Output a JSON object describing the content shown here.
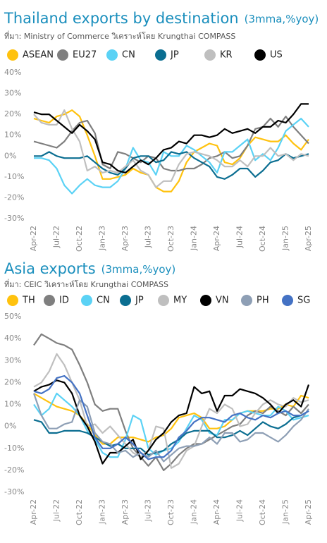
{
  "chart_data": [
    {
      "type": "line",
      "title": "Thailand exports by destination",
      "title_unit": "(3mma,%yoy)",
      "source": "ที่มา: Ministry of Commerce วิเคราะห์โดย Krungthai COMPASS",
      "categories": [
        "Apr-22",
        null,
        null,
        "Jul-22",
        null,
        null,
        "Oct-22",
        null,
        null,
        "Jan-23",
        null,
        null,
        "Apr-23",
        null,
        null,
        "Jul-23",
        null,
        null,
        "Oct-23",
        null,
        null,
        "Jan-24",
        null,
        null,
        "Apr-24",
        null,
        null,
        "Jul-24",
        null,
        null,
        "Oct-24",
        null,
        null,
        "Jan-25",
        null,
        null,
        "Apr-25"
      ],
      "ylim": [
        -30,
        40
      ],
      "yticks": [
        {
          "value": -30,
          "label": "-30%"
        },
        {
          "value": -20,
          "label": "-20%"
        },
        {
          "value": -10,
          "label": "-10%"
        },
        {
          "value": 0,
          "label": "0%"
        },
        {
          "value": 10,
          "label": "10%"
        },
        {
          "value": 20,
          "label": "20%"
        },
        {
          "value": 30,
          "label": "30%"
        },
        {
          "value": 40,
          "label": "40%"
        }
      ],
      "series": [
        {
          "name": "ASEAN",
          "color": "#ffc20e",
          "values": [
            18,
            17,
            16,
            19,
            20,
            22,
            19,
            10,
            0,
            -11,
            -11,
            -10,
            -9,
            -6,
            -8,
            -9,
            -15,
            -17,
            -17,
            -12,
            -3,
            2,
            4,
            6,
            5,
            -3,
            -4,
            -1,
            5,
            9,
            8,
            7,
            7,
            10,
            6,
            3,
            8
          ]
        },
        {
          "name": "EU27",
          "color": "#7f7f7f",
          "values": [
            7,
            6,
            5,
            4,
            7,
            12,
            16,
            17,
            11,
            -4,
            -6,
            2,
            1,
            -1,
            -3,
            0,
            -1,
            -6,
            -7,
            -7,
            -6,
            -6,
            -4,
            -1,
            0,
            2,
            -1,
            0,
            5,
            13,
            14,
            18,
            14,
            19,
            14,
            10,
            6
          ]
        },
        {
          "name": "CN",
          "color": "#5bd2f5",
          "values": [
            -1,
            -1,
            -2,
            -6,
            -14,
            -18,
            -14,
            -11,
            -14,
            -15,
            -15,
            -12,
            -6,
            4,
            -2,
            -3,
            -9,
            2,
            0,
            0,
            5,
            3,
            0,
            -3,
            -8,
            2,
            2,
            5,
            8,
            -2,
            1,
            -2,
            4,
            12,
            15,
            18,
            14
          ]
        },
        {
          "name": "JP",
          "color": "#0b6e91",
          "values": [
            0,
            0,
            2,
            0,
            -1,
            -1,
            -1,
            0,
            -3,
            -6,
            -8,
            -9,
            -6,
            -1,
            0,
            0,
            -3,
            -2,
            2,
            1,
            2,
            -1,
            -3,
            -5,
            -10,
            -11,
            -9,
            -6,
            -6,
            -10,
            -7,
            -3,
            -2,
            1,
            -1,
            0,
            1
          ]
        },
        {
          "name": "KR",
          "color": "#bfbfbf",
          "values": [
            20,
            16,
            15,
            15,
            22,
            13,
            7,
            -7,
            -5,
            -8,
            -7,
            -8,
            -5,
            -2,
            -7,
            -9,
            -15,
            -12,
            -12,
            -4,
            1,
            2,
            1,
            0,
            -2,
            -5,
            -5,
            -2,
            -5,
            0,
            0,
            4,
            0,
            1,
            -2,
            1,
            0
          ]
        },
        {
          "name": "US",
          "color": "#000000",
          "values": [
            21,
            20,
            20,
            17,
            14,
            11,
            15,
            12,
            8,
            -3,
            -4,
            -7,
            -8,
            -5,
            -2,
            -4,
            -1,
            3,
            4,
            7,
            6,
            10,
            10,
            9,
            10,
            13,
            11,
            12,
            13,
            11,
            14,
            14,
            17,
            16,
            20,
            25,
            25
          ]
        }
      ]
    },
    {
      "type": "line",
      "title": "Asia exports",
      "title_unit": "(3mma,%yoy)",
      "source": "ที่มา: CEIC วิเคราะห์โดย Krungthai COMPASS",
      "categories": [
        "Apr-22",
        null,
        null,
        "Jul-22",
        null,
        null,
        "Oct-22",
        null,
        null,
        "Jan-23",
        null,
        null,
        "Apr-23",
        null,
        null,
        "Jul-23",
        null,
        null,
        "Oct-23",
        null,
        null,
        "Jan-24",
        null,
        null,
        "Apr-24",
        null,
        null,
        "Jul-24",
        null,
        null,
        "Oct-24",
        null,
        null,
        "Jan-25",
        null,
        null,
        "Apr-25"
      ],
      "ylim": [
        -30,
        50
      ],
      "yticks": [
        {
          "value": -30,
          "label": "-30%"
        },
        {
          "value": -20,
          "label": "-20%"
        },
        {
          "value": -10,
          "label": "-10%"
        },
        {
          "value": 0,
          "label": "0%"
        },
        {
          "value": 10,
          "label": "10%"
        },
        {
          "value": 20,
          "label": "20%"
        },
        {
          "value": 30,
          "label": "30%"
        },
        {
          "value": 40,
          "label": "40%"
        },
        {
          "value": 50,
          "label": "50%"
        }
      ],
      "series": [
        {
          "name": "TH",
          "color": "#ffc20e",
          "values": [
            15,
            13,
            11,
            9,
            8,
            7,
            5,
            1,
            -4,
            -8,
            -8,
            -5,
            -5,
            -5,
            -6,
            -7,
            -5,
            -4,
            -1,
            4,
            5,
            6,
            4,
            -1,
            -1,
            0,
            3,
            6,
            7,
            7,
            7,
            8,
            8,
            10,
            9,
            14,
            13
          ]
        },
        {
          "name": "ID",
          "color": "#7f7f7f",
          "values": [
            37,
            42,
            40,
            38,
            37,
            35,
            28,
            20,
            10,
            7,
            8,
            8,
            -2,
            -10,
            -14,
            -18,
            -14,
            -20,
            -17,
            -13,
            -10,
            -8,
            -8,
            -6,
            -4,
            -2,
            0,
            1,
            5,
            7,
            6,
            9,
            7,
            5,
            9,
            6,
            10
          ]
        },
        {
          "name": "CN",
          "color": "#5bd2f5",
          "values": [
            10,
            5,
            8,
            15,
            12,
            9,
            5,
            -2,
            -6,
            -12,
            -14,
            -14,
            -6,
            5,
            3,
            -10,
            -13,
            -11,
            -10,
            -7,
            -1,
            5,
            3,
            -3,
            -4,
            3,
            3,
            6,
            7,
            6,
            5,
            5,
            9,
            7,
            3,
            4,
            5
          ]
        },
        {
          "name": "JP",
          "color": "#0b6e91",
          "values": [
            3,
            2,
            -3,
            -3,
            -2,
            -2,
            -2,
            -3,
            -5,
            -7,
            -9,
            -8,
            -10,
            -10,
            -10,
            -13,
            -12,
            -11,
            -8,
            -6,
            -3,
            -2,
            -2,
            -2,
            -5,
            -5,
            -4,
            -2,
            -4,
            -1,
            2,
            0,
            -1,
            1,
            4,
            5,
            7
          ]
        },
        {
          "name": "MY",
          "color": "#bfbfbf",
          "values": [
            18,
            20,
            25,
            33,
            28,
            20,
            12,
            0,
            1,
            -3,
            0,
            -4,
            -8,
            -12,
            -14,
            -11,
            0,
            -1,
            -19,
            -17,
            -11,
            -9,
            0,
            8,
            6,
            10,
            8,
            0,
            1,
            6,
            10,
            12,
            10,
            9,
            13,
            11,
            12
          ]
        },
        {
          "name": "VN",
          "color": "#000000",
          "values": [
            16,
            18,
            19,
            21,
            20,
            15,
            5,
            0,
            -7,
            -17,
            -12,
            -12,
            -9,
            -6,
            -15,
            -11,
            -6,
            -3,
            2,
            5,
            6,
            18,
            15,
            16,
            7,
            14,
            14,
            17,
            16,
            15,
            13,
            10,
            6,
            10,
            12,
            9,
            19
          ]
        },
        {
          "name": "PH",
          "color": "#8e9fb5",
          "values": [
            15,
            5,
            -1,
            -1,
            1,
            2,
            12,
            9,
            -3,
            -7,
            -8,
            -12,
            -11,
            -14,
            -12,
            -14,
            -11,
            -16,
            -13,
            -10,
            -9,
            -9,
            -8,
            -5,
            -8,
            -3,
            -3,
            -7,
            -6,
            -3,
            -3,
            -5,
            -7,
            -4,
            0,
            3,
            8
          ]
        },
        {
          "name": "SG",
          "color": "#4472c4",
          "values": [
            16,
            15,
            17,
            22,
            23,
            20,
            15,
            5,
            -5,
            -10,
            -10,
            -8,
            -5,
            -8,
            -12,
            -15,
            -14,
            -14,
            -11,
            -5,
            -2,
            2,
            4,
            4,
            3,
            2,
            5,
            6,
            4,
            3,
            5,
            4,
            6,
            7,
            5,
            5,
            7
          ]
        }
      ]
    }
  ]
}
